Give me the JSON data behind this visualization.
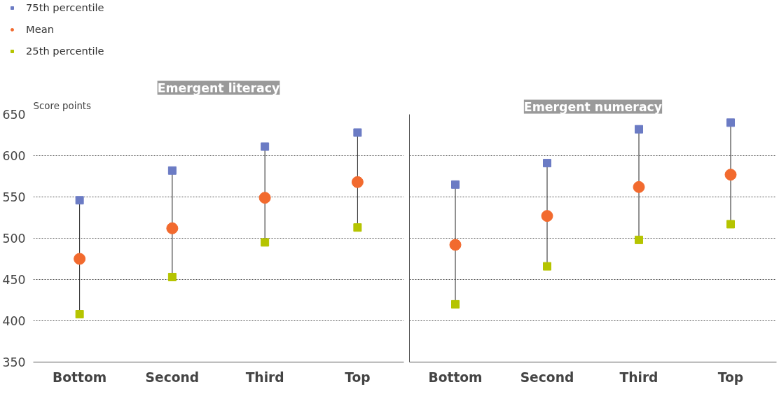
{
  "chart_data": [
    {
      "type": "scatter",
      "title": "Emergent literacy",
      "ylabel": "Score points",
      "categories": [
        "Bottom",
        "Second",
        "Third",
        "Top"
      ],
      "ylim": [
        350,
        650
      ],
      "yticks": [
        350,
        400,
        450,
        500,
        550,
        600,
        650
      ],
      "grid": "y",
      "legend": "top left",
      "series": [
        {
          "name": "75th percentile",
          "color": "#6b7bc4",
          "marker": "square",
          "values": [
            546,
            582,
            611,
            628
          ]
        },
        {
          "name": "Mean",
          "color": "#f26a2e",
          "marker": "circle",
          "values": [
            475,
            512,
            549,
            568
          ]
        },
        {
          "name": "25th percentile",
          "color": "#b5c400",
          "marker": "square",
          "values": [
            408,
            453,
            495,
            513
          ]
        }
      ]
    },
    {
      "type": "scatter",
      "title": "Emergent numeracy",
      "categories": [
        "Bottom",
        "Second",
        "Third",
        "Top"
      ],
      "ylim": [
        350,
        650
      ],
      "yticks": [
        350,
        400,
        450,
        500,
        550,
        600,
        650
      ],
      "grid": "y",
      "tick_labels": "x",
      "series": [
        {
          "color": "#6b7bc4",
          "marker": "square",
          "values": [
            565,
            591,
            632,
            640
          ]
        },
        {
          "color": "#f26a2e",
          "marker": "circle",
          "values": [
            492,
            527,
            562,
            577
          ]
        },
        {
          "color": "#b5c400",
          "marker": "square",
          "values": [
            420,
            466,
            498,
            517
          ]
        }
      ]
    }
  ]
}
